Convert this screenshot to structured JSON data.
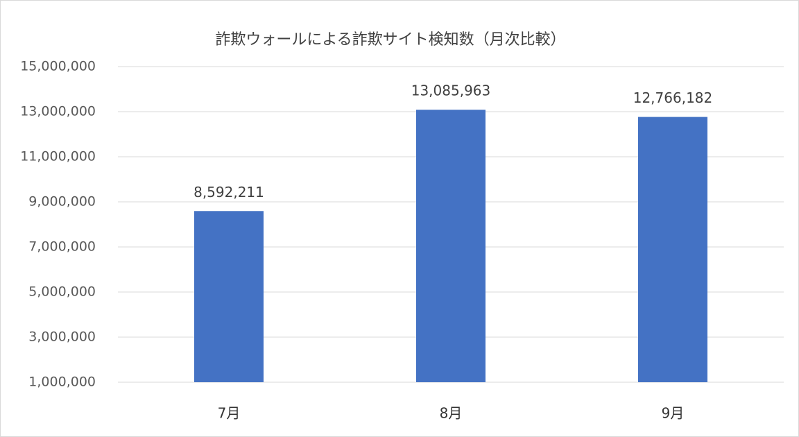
{
  "chart_data": {
    "type": "bar",
    "title": "詐欺ウォールによる詐欺サイト検知数（月次比較）",
    "categories": [
      "7月",
      "8月",
      "9月"
    ],
    "values": [
      8592211,
      13085963,
      12766182
    ],
    "value_labels": [
      "8,592,211",
      "13,085,963",
      "12,766,182"
    ],
    "color": "#4472c4",
    "ylim": [
      1000000,
      15000000
    ],
    "yticks": [
      {
        "value": 1000000,
        "label": "1,000,000"
      },
      {
        "value": 3000000,
        "label": "3,000,000"
      },
      {
        "value": 5000000,
        "label": "5,000,000"
      },
      {
        "value": 7000000,
        "label": "7,000,000"
      },
      {
        "value": 9000000,
        "label": "9,000,000"
      },
      {
        "value": 11000000,
        "label": "11,000,000"
      },
      {
        "value": 13000000,
        "label": "13,000,000"
      },
      {
        "value": 15000000,
        "label": "15,000,000"
      }
    ],
    "grid": true
  }
}
